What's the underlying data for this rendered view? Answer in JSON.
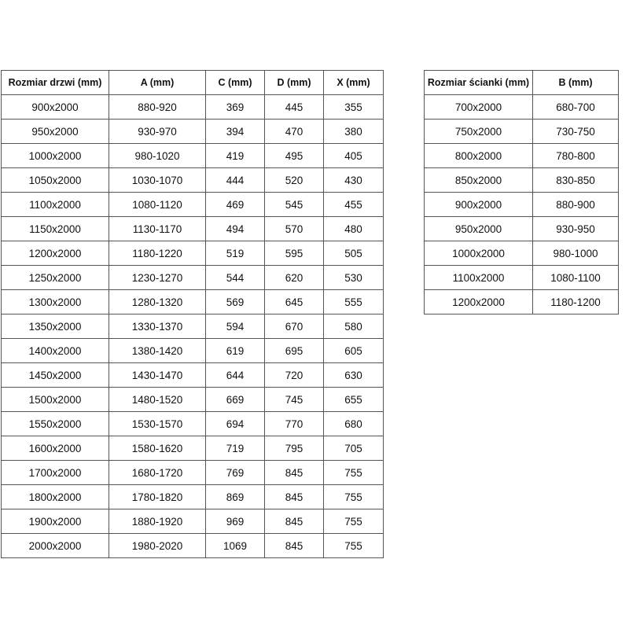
{
  "doors_table": {
    "headers": [
      "Rozmiar drzwi (mm)",
      "A (mm)",
      "C (mm)",
      "D (mm)",
      "X (mm)"
    ],
    "rows": [
      [
        "900x2000",
        "880-920",
        "369",
        "445",
        "355"
      ],
      [
        "950x2000",
        "930-970",
        "394",
        "470",
        "380"
      ],
      [
        "1000x2000",
        "980-1020",
        "419",
        "495",
        "405"
      ],
      [
        "1050x2000",
        "1030-1070",
        "444",
        "520",
        "430"
      ],
      [
        "1100x2000",
        "1080-1120",
        "469",
        "545",
        "455"
      ],
      [
        "1150x2000",
        "1130-1170",
        "494",
        "570",
        "480"
      ],
      [
        "1200x2000",
        "1180-1220",
        "519",
        "595",
        "505"
      ],
      [
        "1250x2000",
        "1230-1270",
        "544",
        "620",
        "530"
      ],
      [
        "1300x2000",
        "1280-1320",
        "569",
        "645",
        "555"
      ],
      [
        "1350x2000",
        "1330-1370",
        "594",
        "670",
        "580"
      ],
      [
        "1400x2000",
        "1380-1420",
        "619",
        "695",
        "605"
      ],
      [
        "1450x2000",
        "1430-1470",
        "644",
        "720",
        "630"
      ],
      [
        "1500x2000",
        "1480-1520",
        "669",
        "745",
        "655"
      ],
      [
        "1550x2000",
        "1530-1570",
        "694",
        "770",
        "680"
      ],
      [
        "1600x2000",
        "1580-1620",
        "719",
        "795",
        "705"
      ],
      [
        "1700x2000",
        "1680-1720",
        "769",
        "845",
        "755"
      ],
      [
        "1800x2000",
        "1780-1820",
        "869",
        "845",
        "755"
      ],
      [
        "1900x2000",
        "1880-1920",
        "969",
        "845",
        "755"
      ],
      [
        "2000x2000",
        "1980-2020",
        "1069",
        "845",
        "755"
      ]
    ]
  },
  "walls_table": {
    "headers": [
      "Rozmiar ścianki (mm)",
      "B (mm)"
    ],
    "rows": [
      [
        "700x2000",
        "680-700"
      ],
      [
        "750x2000",
        "730-750"
      ],
      [
        "800x2000",
        "780-800"
      ],
      [
        "850x2000",
        "830-850"
      ],
      [
        "900x2000",
        "880-900"
      ],
      [
        "950x2000",
        "930-950"
      ],
      [
        "1000x2000",
        "980-1000"
      ],
      [
        "1100x2000",
        "1080-1100"
      ],
      [
        "1200x2000",
        "1180-1200"
      ]
    ]
  }
}
